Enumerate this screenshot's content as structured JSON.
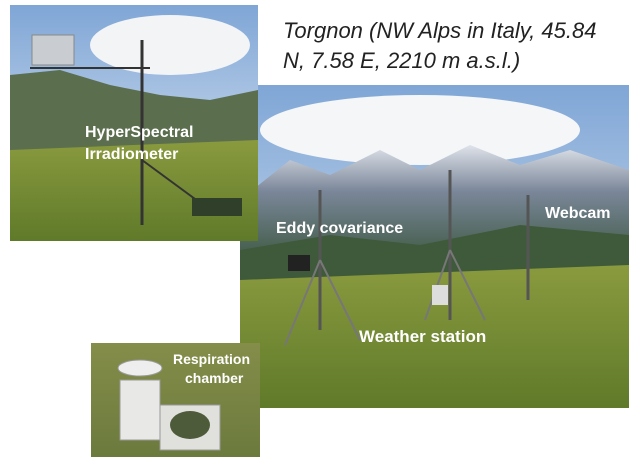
{
  "header": {
    "title_lines": [
      "Torgnon (NW Alps in Italy, 45.84",
      "N, 7.58 E, 2210 m a.s.l.)"
    ]
  },
  "photos": [
    {
      "labels": [
        "HyperSpectral",
        "Irradiometer"
      ]
    },
    {
      "labels": [
        "Eddy covariance",
        "Webcam",
        "Weather station"
      ]
    },
    {
      "labels": [
        "Respiration",
        "chamber"
      ]
    }
  ]
}
